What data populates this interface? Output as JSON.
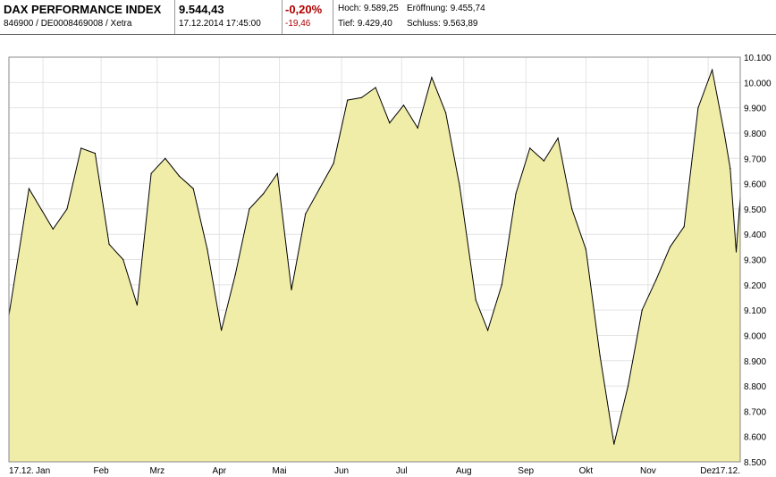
{
  "header": {
    "title": "DAX PERFORMANCE INDEX",
    "subtitle": "846900 / DE0008469008 / Xetra",
    "price": "9.544,43",
    "datetime": "17.12.2014 17:45:00",
    "change_pct": "-0,20%",
    "change_abs": "-19,46",
    "high_label": "Hoch: 9.589,25",
    "open_label": "Eröffnung: 9.455,74",
    "low_label": "Tief: 9.429,40",
    "close_label": "Schluss: 9.563,89",
    "negative_color": "#b00000"
  },
  "chart_data": {
    "type": "area",
    "fill_color": "#f0eda8",
    "line_color": "#000000",
    "grid": true,
    "ylim": [
      8500,
      10100
    ],
    "y_ticks": [
      8500,
      8600,
      8700,
      8800,
      8900,
      9000,
      9100,
      9200,
      9300,
      9400,
      9500,
      9600,
      9700,
      9800,
      9900,
      10000,
      10100
    ],
    "y_tick_labels": [
      "8.500",
      "8.600",
      "8.700",
      "8.800",
      "8.900",
      "9.000",
      "9.100",
      "9.200",
      "9.300",
      "9.400",
      "9.500",
      "9.600",
      "9.700",
      "9.800",
      "9.900",
      "10.000",
      "10.100"
    ],
    "x_labels": [
      "17.12.",
      "Jan",
      "Feb",
      "Mrz",
      "Apr",
      "Mai",
      "Jun",
      "Jul",
      "Aug",
      "Sep",
      "Okt",
      "Nov",
      "Dez",
      "17.12."
    ],
    "x": [
      "2013-12-17",
      "2013-12-27",
      "2014-01-08",
      "2014-01-15",
      "2014-01-22",
      "2014-01-29",
      "2014-02-05",
      "2014-02-12",
      "2014-02-19",
      "2014-02-26",
      "2014-03-05",
      "2014-03-12",
      "2014-03-19",
      "2014-03-26",
      "2014-04-02",
      "2014-04-09",
      "2014-04-16",
      "2014-04-23",
      "2014-04-30",
      "2014-05-07",
      "2014-05-14",
      "2014-05-21",
      "2014-05-28",
      "2014-06-04",
      "2014-06-11",
      "2014-06-18",
      "2014-06-25",
      "2014-07-02",
      "2014-07-09",
      "2014-07-16",
      "2014-07-23",
      "2014-07-30",
      "2014-08-07",
      "2014-08-13",
      "2014-08-20",
      "2014-08-27",
      "2014-09-03",
      "2014-09-10",
      "2014-09-17",
      "2014-09-24",
      "2014-10-01",
      "2014-10-08",
      "2014-10-15",
      "2014-10-22",
      "2014-10-29",
      "2014-11-05",
      "2014-11-12",
      "2014-11-19",
      "2014-11-26",
      "2014-12-03",
      "2014-12-09",
      "2014-12-12",
      "2014-12-15",
      "2014-12-17"
    ],
    "values": [
      9080,
      9580,
      9420,
      9500,
      9740,
      9720,
      9360,
      9300,
      9120,
      9640,
      9700,
      9630,
      9580,
      9340,
      9020,
      9240,
      9500,
      9560,
      9640,
      9180,
      9480,
      9580,
      9680,
      9930,
      9940,
      9980,
      9840,
      9910,
      9820,
      10020,
      9880,
      9590,
      9140,
      9020,
      9200,
      9560,
      9740,
      9690,
      9780,
      9500,
      9340,
      8920,
      8570,
      8800,
      9100,
      9220,
      9350,
      9430,
      9900,
      10050,
      9800,
      9660,
      9330,
      9544
    ]
  }
}
